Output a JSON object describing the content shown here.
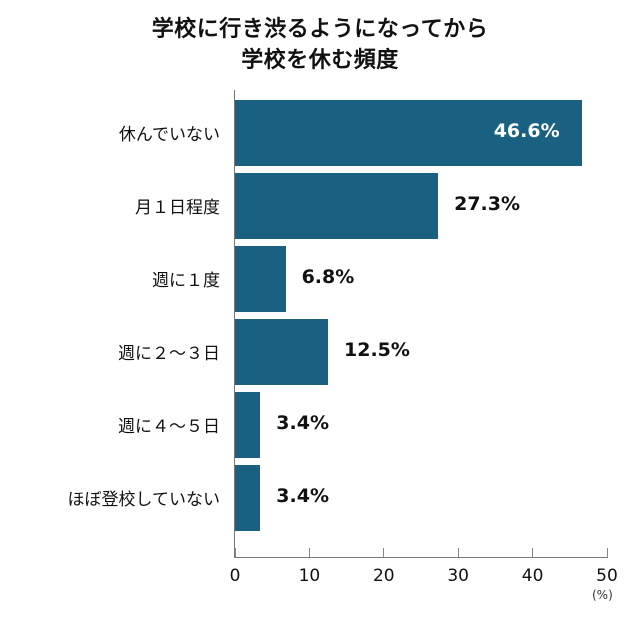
{
  "chart_data": {
    "type": "bar",
    "orientation": "horizontal",
    "title": "学校に行き渋るようになってから学校を休む頻度",
    "title_lines": [
      "学校に行き渋るようになってから",
      "学校を休む頻度"
    ],
    "categories": [
      "休んでいない",
      "月１日程度",
      "週に１度",
      "週に２〜３日",
      "週に４〜５日",
      "ほぼ登校していない"
    ],
    "values": [
      46.6,
      27.3,
      6.8,
      12.5,
      3.4,
      3.4
    ],
    "value_labels": [
      "46.6%",
      "27.3%",
      "6.8%",
      "12.5%",
      "3.4%",
      "3.4%"
    ],
    "xlabel": "(%)",
    "ylabel": "",
    "xlim": [
      0,
      50
    ],
    "xticks": [
      "0",
      "10",
      "20",
      "30",
      "40",
      "50"
    ],
    "grid": false,
    "legend": null,
    "bar_color": "#1a6080"
  }
}
